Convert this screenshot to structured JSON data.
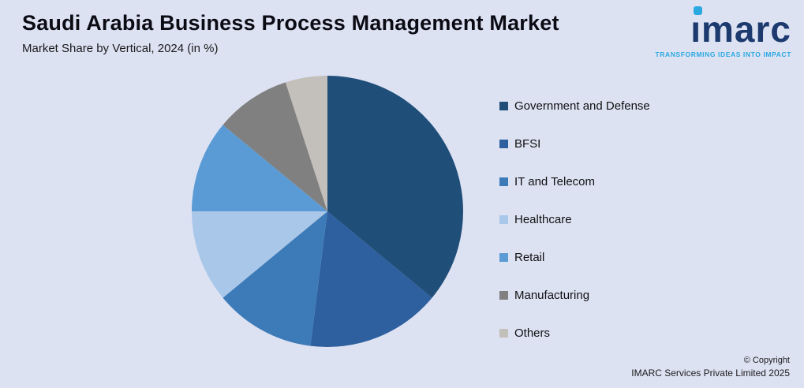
{
  "header": {
    "title": "Saudi Arabia Business Process Management Market",
    "subtitle": "Market Share by Vertical, 2024 (in %)"
  },
  "logo": {
    "word": "ımarc",
    "tagline": "TRANSFORMING IDEAS INTO IMPACT",
    "brand_color": "#1c3a6e",
    "accent_color": "#2aa9e0"
  },
  "chart_data": {
    "type": "pie",
    "title": "Saudi Arabia Business Process Management Market",
    "subtitle": "Market Share by Vertical, 2024 (in %)",
    "legend_position": "right",
    "start_angle_deg": 0,
    "units": "%",
    "slices": [
      {
        "label": "Government and Defense",
        "value": 36,
        "color": "#1F4E79"
      },
      {
        "label": "BFSI",
        "value": 16,
        "color": "#2E5F9E"
      },
      {
        "label": "IT and Telecom",
        "value": 12,
        "color": "#3D7AB8"
      },
      {
        "label": "Healthcare",
        "value": 11,
        "color": "#A9C7E8"
      },
      {
        "label": "Retail",
        "value": 11,
        "color": "#5B9BD5"
      },
      {
        "label": "Manufacturing",
        "value": 9,
        "color": "#808080"
      },
      {
        "label": "Others",
        "value": 5,
        "color": "#C3BFBA"
      }
    ]
  },
  "footer": {
    "copyright_line1": "© Copyright",
    "copyright_line2": "IMARC Services Private Limited 2025"
  }
}
